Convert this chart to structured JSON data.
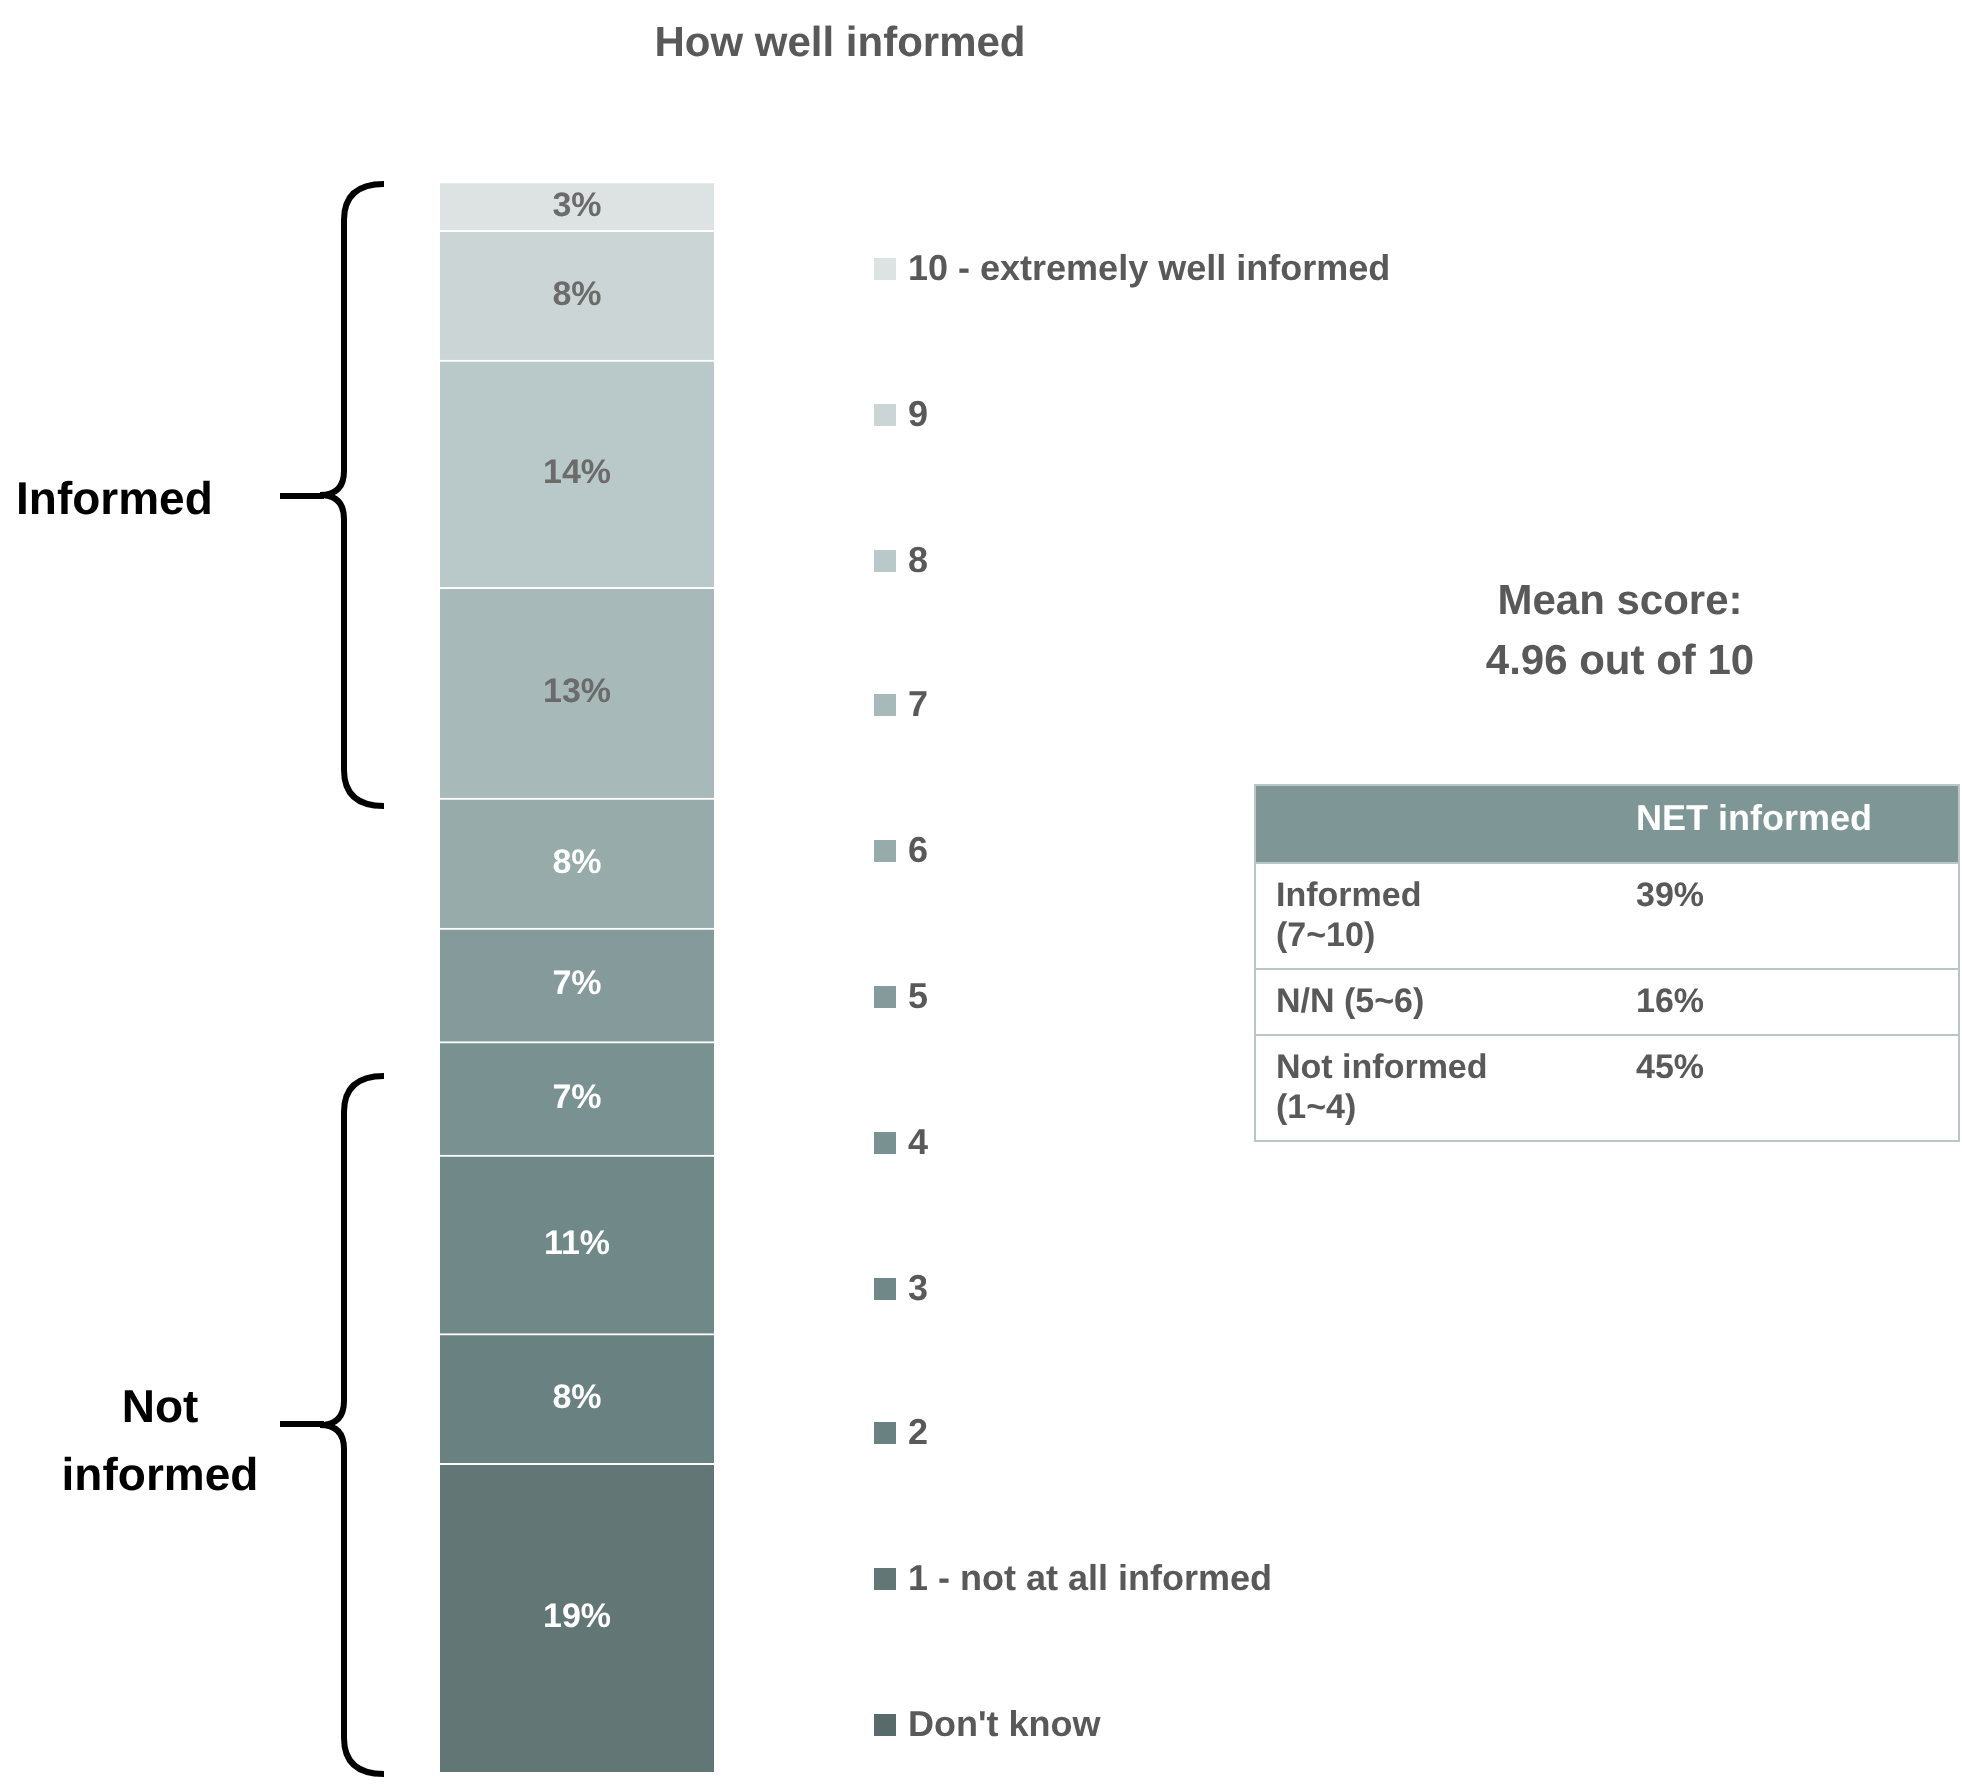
{
  "chart_data": {
    "type": "bar",
    "title": "How well informed",
    "categories": [
      null
    ],
    "stacked": true,
    "legend": "right",
    "tick_labels": false,
    "series": [
      {
        "name": "Don't know",
        "color": "#586a6a",
        "values": [
          null
        ]
      },
      {
        "name": "1 - not at all informed",
        "color": "#627676",
        "values": [
          19
        ],
        "value_labels": [
          "19%"
        ]
      },
      {
        "name": "2",
        "color": "#6a8181",
        "values": [
          8
        ],
        "value_labels": [
          "8%"
        ]
      },
      {
        "name": "3",
        "color": "#718888",
        "values": [
          11
        ],
        "value_labels": [
          "11%"
        ]
      },
      {
        "name": "4",
        "color": "#7a9191",
        "values": [
          7
        ],
        "value_labels": [
          "7%"
        ]
      },
      {
        "name": "5",
        "color": "#859b9b",
        "values": [
          7
        ],
        "value_labels": [
          "7%"
        ]
      },
      {
        "name": "6",
        "color": "#97abab",
        "values": [
          8
        ],
        "value_labels": [
          "8%"
        ]
      },
      {
        "name": "7",
        "color": "#a8b9b9",
        "values": [
          13
        ],
        "value_labels": [
          "13%"
        ]
      },
      {
        "name": "8",
        "color": "#b9c8c8",
        "values": [
          14
        ],
        "value_labels": [
          "14%"
        ]
      },
      {
        "name": "9",
        "color": "#cbd5d5",
        "values": [
          8
        ],
        "value_labels": [
          "8%"
        ]
      },
      {
        "name": "10 - extremely well informed",
        "color": "#dde3e3",
        "values": [
          3
        ],
        "value_labels": [
          "3%"
        ]
      }
    ],
    "annotations": [
      "Informed",
      "Not informed",
      "Mean score:\n4.96 out of 10",
      "NET informed",
      "Informed\n(7~10)",
      "39%",
      "N/N (5~6)",
      "16%",
      "Not informed\n(1~4)",
      "45%"
    ]
  }
}
